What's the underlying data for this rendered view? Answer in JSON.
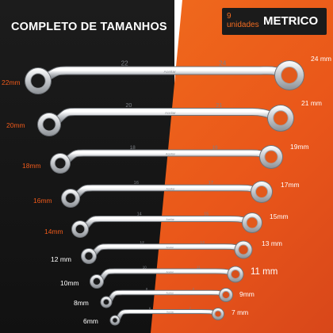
{
  "headline": "COMPLETO DE TAMANHOS",
  "badge": {
    "count": "9 unidades",
    "title": "METRICO"
  },
  "colors": {
    "accent": "#f26b20",
    "dark": "#151515",
    "chrome": "#cfd2d6"
  },
  "brand_stamp": "Aceitar",
  "wrenches": [
    {
      "left_label": "22mm",
      "right_label": "24 mm",
      "left_stamp": "22",
      "right_stamp": "24"
    },
    {
      "left_label": "20mm",
      "right_label": "21 mm",
      "left_stamp": "20",
      "right_stamp": "21"
    },
    {
      "left_label": "18mm",
      "right_label": "19mm",
      "left_stamp": "18",
      "right_stamp": "19"
    },
    {
      "left_label": "16mm",
      "right_label": "17mm",
      "left_stamp": "16",
      "right_stamp": "17"
    },
    {
      "left_label": "14mm",
      "right_label": "15mm",
      "left_stamp": "14",
      "right_stamp": "15"
    },
    {
      "left_label": "12 mm",
      "right_label": "13 mm",
      "left_stamp": "12",
      "right_stamp": "13"
    },
    {
      "left_label": "10mm",
      "right_label": "11 mm",
      "left_stamp": "10",
      "right_stamp": "11"
    },
    {
      "left_label": "8mm",
      "right_label": "9mm",
      "left_stamp": "8",
      "right_stamp": "9"
    },
    {
      "left_label": "6mm",
      "right_label": "7 mm",
      "left_stamp": "6",
      "right_stamp": "7"
    }
  ]
}
